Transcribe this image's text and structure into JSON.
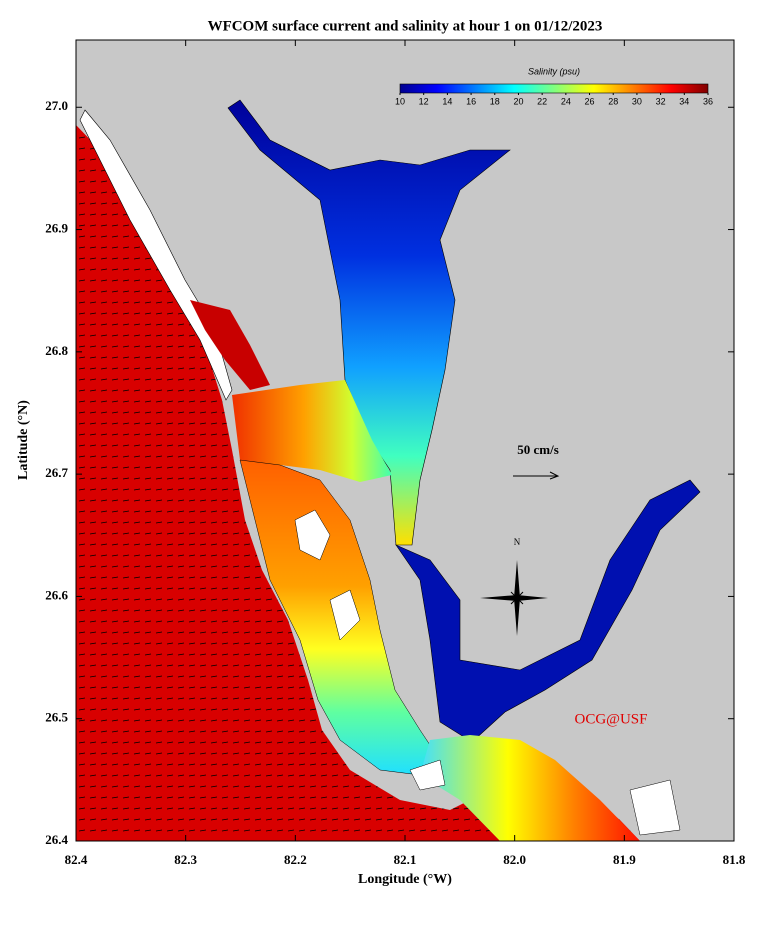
{
  "title": "WFCOM surface current and salinity at hour 1 on 01/12/2023",
  "x_axis": {
    "label": "Longitude (°W)",
    "lim": [
      82.4,
      81.8
    ],
    "ticks": [
      82.4,
      82.3,
      82.2,
      82.1,
      {
        "value": 82,
        "label": "82.0"
      },
      81.9,
      81.8
    ]
  },
  "y_axis": {
    "label": "Latitude (°N)",
    "lim": [
      26.4,
      27.055
    ],
    "ticks": [
      26.4,
      26.5,
      26.6,
      26.7,
      26.8,
      26.9,
      {
        "value": 27,
        "label": "27.0"
      }
    ]
  },
  "colorbar": {
    "label": "Salinity (psu)",
    "lim": [
      10,
      36
    ],
    "ticks": [
      10,
      12,
      14,
      16,
      18,
      20,
      22,
      24,
      26,
      28,
      30,
      32,
      34,
      36
    ]
  },
  "annotations": {
    "scale_label": "50 cm/s",
    "north": "N",
    "credit": "OCG@USF"
  }
}
